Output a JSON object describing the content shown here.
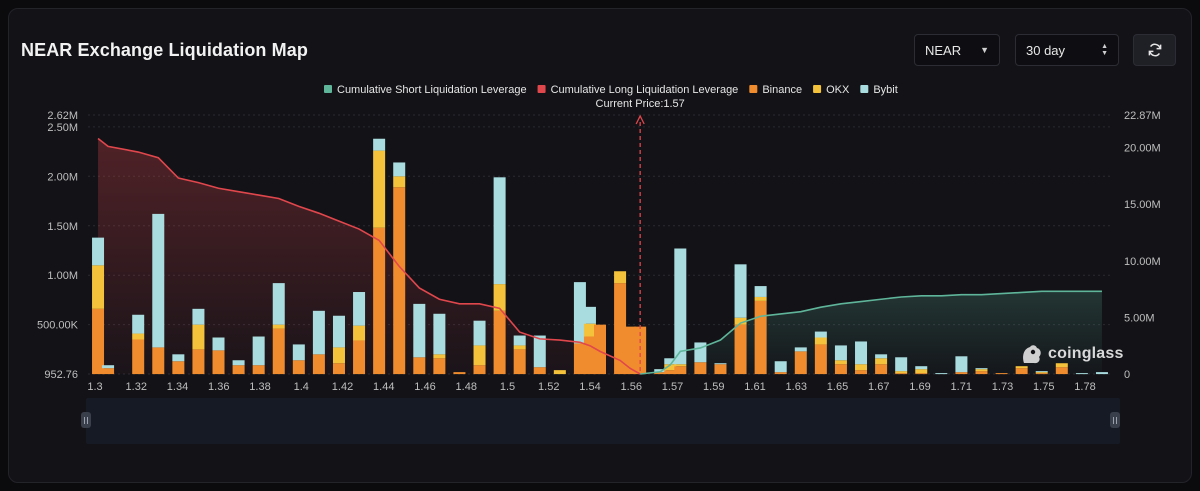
{
  "title": "NEAR Exchange Liquidation Map",
  "controls": {
    "coin": "NEAR",
    "period": "30 day"
  },
  "icons": {
    "coin_dropdown": "caret-down-icon",
    "period_spinner": "updown-arrows-icon",
    "refresh": "refresh-icon"
  },
  "watermark": "coinglass",
  "current_price_label": "Current Price:1.57",
  "colors": {
    "binance": "#f08c2e",
    "okx": "#f5c33b",
    "bybit": "#a8dcdf",
    "short_cum": "#5fb59a",
    "long_cum": "#e0474c",
    "marker": "#e0474c"
  },
  "chart_data": {
    "type": "bar",
    "stacked": true,
    "xlabel": "",
    "ylabel": "",
    "x_ticks": [
      "1.3",
      "1.32",
      "1.34",
      "1.36",
      "1.38",
      "1.4",
      "1.42",
      "1.44",
      "1.46",
      "1.48",
      "1.5",
      "1.52",
      "1.54",
      "1.56",
      "1.57",
      "1.59",
      "1.61",
      "1.63",
      "1.65",
      "1.67",
      "1.69",
      "1.71",
      "1.73",
      "1.75",
      "1.78"
    ],
    "y_left_ticks": [
      "952.76",
      "500.00K",
      "1.00M",
      "1.50M",
      "2.00M",
      "2.50M",
      "2.62M"
    ],
    "y_right_ticks": [
      "0",
      "5.00M",
      "10.00M",
      "15.00M",
      "20.00M",
      "22.87M"
    ],
    "y_left_range": [
      952.76,
      2620000
    ],
    "y_right_range": [
      0,
      22870000
    ],
    "current_price": 1.57,
    "legend_position": "top-center",
    "legend": [
      {
        "name": "Cumulative Short Liquidation Leverage",
        "type": "line"
      },
      {
        "name": "Cumulative Long Liquidation Leverage",
        "type": "line"
      },
      {
        "name": "Binance",
        "type": "bar"
      },
      {
        "name": "OKX",
        "type": "bar"
      },
      {
        "name": "Bybit",
        "type": "bar"
      }
    ],
    "bars": [
      {
        "price": 1.3,
        "binance": 660000,
        "okx": 440000,
        "bybit": 280000
      },
      {
        "price": 1.305,
        "binance": 60000,
        "okx": 0,
        "bybit": 30000
      },
      {
        "price": 1.32,
        "binance": 350000,
        "okx": 60000,
        "bybit": 190000
      },
      {
        "price": 1.33,
        "binance": 270000,
        "okx": 0,
        "bybit": 1350000
      },
      {
        "price": 1.34,
        "binance": 130000,
        "okx": 0,
        "bybit": 70000
      },
      {
        "price": 1.35,
        "binance": 250000,
        "okx": 250000,
        "bybit": 160000
      },
      {
        "price": 1.36,
        "binance": 240000,
        "okx": 0,
        "bybit": 130000
      },
      {
        "price": 1.37,
        "binance": 90000,
        "okx": 0,
        "bybit": 50000
      },
      {
        "price": 1.38,
        "binance": 90000,
        "okx": 0,
        "bybit": 290000
      },
      {
        "price": 1.39,
        "binance": 460000,
        "okx": 40000,
        "bybit": 420000
      },
      {
        "price": 1.4,
        "binance": 140000,
        "okx": 0,
        "bybit": 160000
      },
      {
        "price": 1.41,
        "binance": 200000,
        "okx": 0,
        "bybit": 440000
      },
      {
        "price": 1.42,
        "binance": 110000,
        "okx": 160000,
        "bybit": 320000
      },
      {
        "price": 1.43,
        "binance": 340000,
        "okx": 150000,
        "bybit": 340000
      },
      {
        "price": 1.44,
        "binance": 1480000,
        "okx": 780000,
        "bybit": 120000
      },
      {
        "price": 1.45,
        "binance": 1890000,
        "okx": 110000,
        "bybit": 140000
      },
      {
        "price": 1.46,
        "binance": 170000,
        "okx": 0,
        "bybit": 540000
      },
      {
        "price": 1.47,
        "binance": 160000,
        "okx": 40000,
        "bybit": 410000
      },
      {
        "price": 1.48,
        "binance": 20000,
        "okx": 0,
        "bybit": 0
      },
      {
        "price": 1.49,
        "binance": 90000,
        "okx": 200000,
        "bybit": 250000
      },
      {
        "price": 1.5,
        "binance": 640000,
        "okx": 270000,
        "bybit": 1080000
      },
      {
        "price": 1.51,
        "binance": 250000,
        "okx": 40000,
        "bybit": 100000
      },
      {
        "price": 1.52,
        "binance": 70000,
        "okx": 0,
        "bybit": 320000
      },
      {
        "price": 1.53,
        "binance": 0,
        "okx": 40000,
        "bybit": 0
      },
      {
        "price": 1.54,
        "binance": 310000,
        "okx": 0,
        "bybit": 620000
      },
      {
        "price": 1.545,
        "binance": 380000,
        "okx": 130000,
        "bybit": 170000
      },
      {
        "price": 1.55,
        "binance": 500000,
        "okx": 0,
        "bybit": 0
      },
      {
        "price": 1.56,
        "binance": 920000,
        "okx": 120000,
        "bybit": 0
      },
      {
        "price": 1.565,
        "binance": 480000,
        "okx": 0,
        "bybit": 0
      },
      {
        "price": 1.57,
        "binance": 480000,
        "okx": 0,
        "bybit": 0
      },
      {
        "price": 1.58,
        "binance": 20000,
        "okx": 0,
        "bybit": 30000
      },
      {
        "price": 1.585,
        "binance": 40000,
        "okx": 60000,
        "bybit": 60000
      },
      {
        "price": 1.59,
        "binance": 80000,
        "okx": 20000,
        "bybit": 1170000
      },
      {
        "price": 1.6,
        "binance": 120000,
        "okx": 0,
        "bybit": 200000
      },
      {
        "price": 1.61,
        "binance": 100000,
        "okx": 0,
        "bybit": 10000
      },
      {
        "price": 1.62,
        "binance": 500000,
        "okx": 70000,
        "bybit": 540000
      },
      {
        "price": 1.63,
        "binance": 740000,
        "okx": 40000,
        "bybit": 110000
      },
      {
        "price": 1.64,
        "binance": 20000,
        "okx": 0,
        "bybit": 110000
      },
      {
        "price": 1.65,
        "binance": 230000,
        "okx": 0,
        "bybit": 40000
      },
      {
        "price": 1.66,
        "binance": 300000,
        "okx": 70000,
        "bybit": 60000
      },
      {
        "price": 1.67,
        "binance": 100000,
        "okx": 40000,
        "bybit": 150000
      },
      {
        "price": 1.68,
        "binance": 40000,
        "okx": 60000,
        "bybit": 230000
      },
      {
        "price": 1.69,
        "binance": 100000,
        "okx": 60000,
        "bybit": 40000
      },
      {
        "price": 1.7,
        "binance": 10000,
        "okx": 20000,
        "bybit": 140000
      },
      {
        "price": 1.71,
        "binance": 10000,
        "okx": 40000,
        "bybit": 30000
      },
      {
        "price": 1.72,
        "binance": 0,
        "okx": 0,
        "bybit": 10000
      },
      {
        "price": 1.73,
        "binance": 20000,
        "okx": 0,
        "bybit": 160000
      },
      {
        "price": 1.74,
        "binance": 30000,
        "okx": 20000,
        "bybit": 10000
      },
      {
        "price": 1.75,
        "binance": 10000,
        "okx": 0,
        "bybit": 0
      },
      {
        "price": 1.76,
        "binance": 60000,
        "okx": 20000,
        "bybit": 0
      },
      {
        "price": 1.77,
        "binance": 10000,
        "okx": 10000,
        "bybit": 10000
      },
      {
        "price": 1.78,
        "binance": 70000,
        "okx": 40000,
        "bybit": 0
      },
      {
        "price": 1.79,
        "binance": 0,
        "okx": 0,
        "bybit": 10000
      },
      {
        "price": 1.8,
        "binance": 0,
        "okx": 0,
        "bybit": 20000
      }
    ],
    "long_cumulative": {
      "name": "Cumulative Long Liquidation Leverage",
      "points": [
        [
          1.3,
          20.8
        ],
        [
          1.305,
          20.1
        ],
        [
          1.32,
          19.6
        ],
        [
          1.33,
          19.1
        ],
        [
          1.34,
          17.3
        ],
        [
          1.35,
          16.9
        ],
        [
          1.36,
          16.4
        ],
        [
          1.37,
          16.1
        ],
        [
          1.38,
          15.8
        ],
        [
          1.39,
          15.5
        ],
        [
          1.4,
          14.8
        ],
        [
          1.41,
          14.2
        ],
        [
          1.42,
          13.5
        ],
        [
          1.43,
          12.8
        ],
        [
          1.44,
          11.8
        ],
        [
          1.45,
          9.5
        ],
        [
          1.46,
          7.6
        ],
        [
          1.47,
          6.6
        ],
        [
          1.48,
          6.2
        ],
        [
          1.49,
          6.2
        ],
        [
          1.5,
          5.8
        ],
        [
          1.51,
          3.7
        ],
        [
          1.52,
          3.1
        ],
        [
          1.53,
          3.0
        ],
        [
          1.54,
          2.8
        ],
        [
          1.545,
          2.5
        ],
        [
          1.55,
          2.0
        ],
        [
          1.56,
          1.2
        ],
        [
          1.565,
          0.5
        ],
        [
          1.57,
          0.0
        ]
      ]
    },
    "short_cumulative": {
      "name": "Cumulative Short Liquidation Leverage",
      "points": [
        [
          1.57,
          0.0
        ],
        [
          1.58,
          0.2
        ],
        [
          1.585,
          0.8
        ],
        [
          1.59,
          2.0
        ],
        [
          1.6,
          2.3
        ],
        [
          1.61,
          3.0
        ],
        [
          1.62,
          4.5
        ],
        [
          1.63,
          5.1
        ],
        [
          1.64,
          5.3
        ],
        [
          1.65,
          5.5
        ],
        [
          1.66,
          5.9
        ],
        [
          1.67,
          6.2
        ],
        [
          1.68,
          6.4
        ],
        [
          1.69,
          6.6
        ],
        [
          1.7,
          6.8
        ],
        [
          1.71,
          6.9
        ],
        [
          1.72,
          6.9
        ],
        [
          1.73,
          7.0
        ],
        [
          1.74,
          7.0
        ],
        [
          1.75,
          7.1
        ],
        [
          1.76,
          7.2
        ],
        [
          1.77,
          7.3
        ],
        [
          1.78,
          7.3
        ],
        [
          1.79,
          7.3
        ],
        [
          1.8,
          7.3
        ]
      ]
    }
  }
}
